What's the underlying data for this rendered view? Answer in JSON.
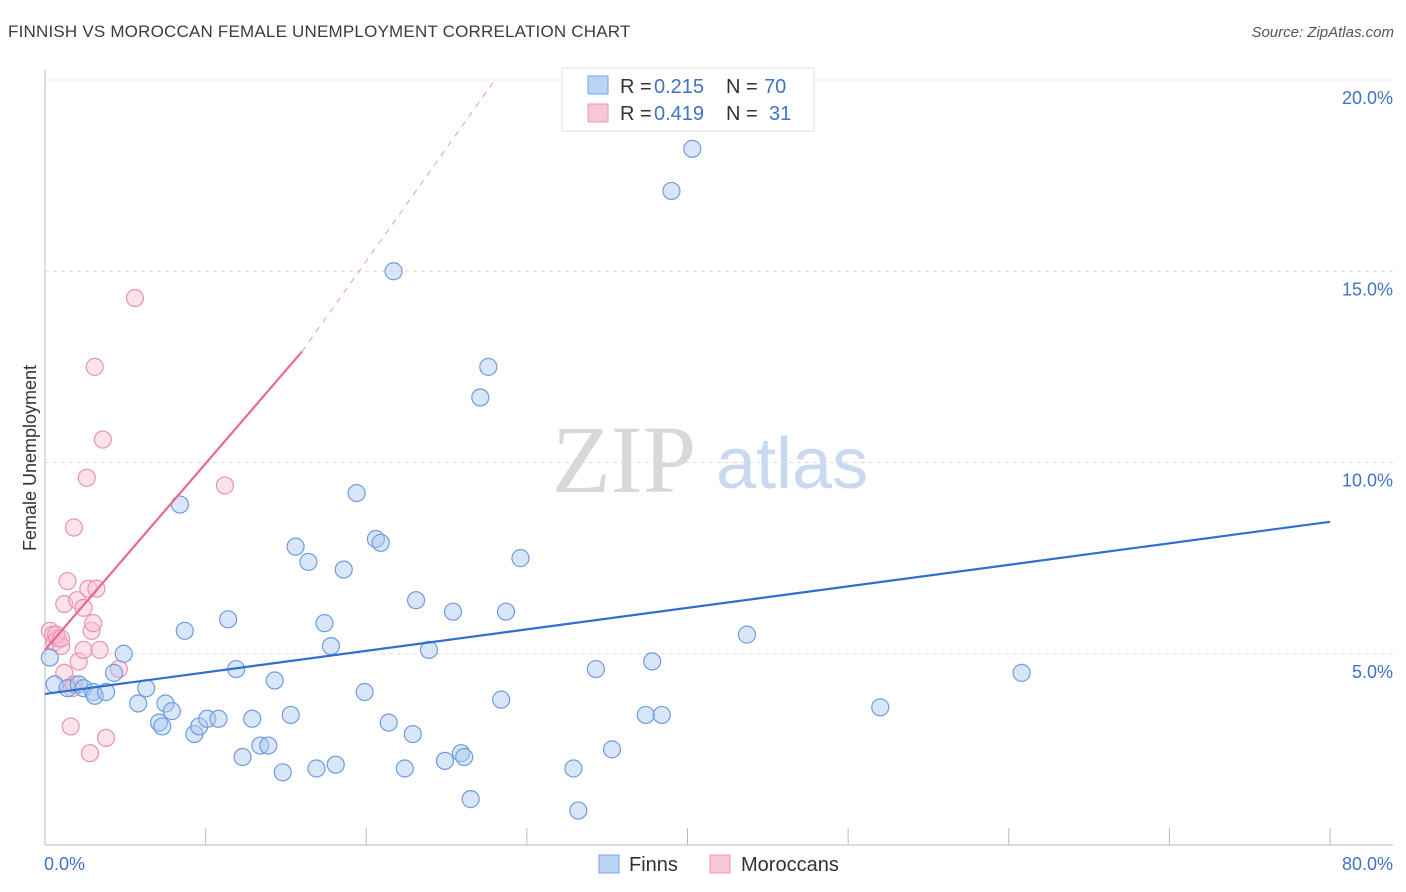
{
  "header": {
    "title": "FINNISH VS MOROCCAN FEMALE UNEMPLOYMENT CORRELATION CHART",
    "source": "Source: ZipAtlas.com"
  },
  "watermark": {
    "zip": "ZIP",
    "atlas": "atlas"
  },
  "legend": {
    "rows": [
      {
        "r_label": "R =",
        "r_value": "0.215",
        "n_label": "N =",
        "n_value": "70"
      },
      {
        "r_label": "R =",
        "r_value": "0.419",
        "n_label": "N =",
        "n_value": "31"
      }
    ]
  },
  "chart_data": {
    "type": "scatter",
    "title": "FINNISH VS MOROCCAN FEMALE UNEMPLOYMENT CORRELATION CHART",
    "xlabel": "",
    "ylabel": "Female Unemployment",
    "xlim": [
      0,
      80
    ],
    "ylim": [
      0,
      20
    ],
    "x_tick_labels": [
      "0.0%",
      "80.0%"
    ],
    "y_ticks": [
      5,
      10,
      15,
      20
    ],
    "y_tick_labels": [
      "5.0%",
      "10.0%",
      "15.0%",
      "20.0%"
    ],
    "grid": true,
    "legend_position": "top-center",
    "colors": {
      "finns": "#5b8fd6",
      "moroccans": "#ea89a9",
      "finns_line": "#2f6fce",
      "moroccans_line": "#e56a92"
    },
    "series": [
      {
        "name": "Finns",
        "points": [
          [
            0.6,
            4.2
          ],
          [
            1.4,
            4.1
          ],
          [
            2.1,
            4.2
          ],
          [
            2.4,
            4.1
          ],
          [
            3.0,
            4.0
          ],
          [
            3.1,
            3.9
          ],
          [
            3.8,
            4.0
          ],
          [
            4.3,
            4.5
          ],
          [
            4.9,
            5.0
          ],
          [
            5.8,
            3.7
          ],
          [
            6.3,
            4.1
          ],
          [
            7.1,
            3.2
          ],
          [
            7.3,
            3.1
          ],
          [
            7.5,
            3.7
          ],
          [
            7.9,
            3.5
          ],
          [
            8.4,
            8.9
          ],
          [
            8.7,
            5.6
          ],
          [
            9.3,
            2.9
          ],
          [
            9.6,
            3.1
          ],
          [
            10.1,
            3.3
          ],
          [
            10.8,
            3.3
          ],
          [
            11.4,
            5.9
          ],
          [
            11.9,
            4.6
          ],
          [
            12.3,
            2.3
          ],
          [
            12.9,
            3.3
          ],
          [
            13.4,
            2.6
          ],
          [
            13.9,
            2.6
          ],
          [
            14.3,
            4.3
          ],
          [
            14.8,
            1.9
          ],
          [
            15.3,
            3.4
          ],
          [
            15.6,
            7.8
          ],
          [
            16.4,
            7.4
          ],
          [
            16.9,
            2.0
          ],
          [
            17.4,
            5.8
          ],
          [
            17.8,
            5.2
          ],
          [
            18.1,
            2.1
          ],
          [
            18.6,
            7.2
          ],
          [
            19.4,
            9.2
          ],
          [
            19.9,
            4.0
          ],
          [
            20.6,
            8.0
          ],
          [
            20.9,
            7.9
          ],
          [
            21.4,
            3.2
          ],
          [
            21.7,
            15.0
          ],
          [
            22.4,
            2.0
          ],
          [
            22.9,
            2.9
          ],
          [
            23.1,
            6.4
          ],
          [
            23.9,
            5.1
          ],
          [
            24.9,
            2.2
          ],
          [
            25.4,
            6.1
          ],
          [
            25.9,
            2.4
          ],
          [
            26.1,
            2.3
          ],
          [
            26.5,
            1.2
          ],
          [
            27.1,
            11.7
          ],
          [
            27.6,
            12.5
          ],
          [
            28.4,
            3.8
          ],
          [
            28.7,
            6.1
          ],
          [
            29.6,
            7.5
          ],
          [
            32.9,
            2.0
          ],
          [
            33.2,
            0.9
          ],
          [
            34.3,
            4.6
          ],
          [
            35.3,
            2.5
          ],
          [
            37.4,
            3.4
          ],
          [
            37.8,
            4.8
          ],
          [
            38.4,
            3.4
          ],
          [
            39.0,
            17.1
          ],
          [
            40.3,
            18.2
          ],
          [
            43.7,
            5.5
          ],
          [
            52.0,
            3.6
          ],
          [
            60.8,
            4.5
          ],
          [
            0.3,
            4.9
          ]
        ]
      },
      {
        "name": "Moroccans",
        "points": [
          [
            0.3,
            5.6
          ],
          [
            0.5,
            5.5
          ],
          [
            0.6,
            5.3
          ],
          [
            0.8,
            5.4
          ],
          [
            1.0,
            5.2
          ],
          [
            1.2,
            4.5
          ],
          [
            1.2,
            6.3
          ],
          [
            1.4,
            6.9
          ],
          [
            1.6,
            3.1
          ],
          [
            1.7,
            4.1
          ],
          [
            1.8,
            8.3
          ],
          [
            1.8,
            4.2
          ],
          [
            2.0,
            6.4
          ],
          [
            2.1,
            4.8
          ],
          [
            2.4,
            5.1
          ],
          [
            2.4,
            6.2
          ],
          [
            2.6,
            9.6
          ],
          [
            2.7,
            6.7
          ],
          [
            2.8,
            2.4
          ],
          [
            2.9,
            5.6
          ],
          [
            3.0,
            5.8
          ],
          [
            3.1,
            12.5
          ],
          [
            3.2,
            6.7
          ],
          [
            3.4,
            5.1
          ],
          [
            3.6,
            10.6
          ],
          [
            3.8,
            2.8
          ],
          [
            4.6,
            4.6
          ],
          [
            5.6,
            14.3
          ],
          [
            11.2,
            9.4
          ],
          [
            0.7,
            5.5
          ],
          [
            1.0,
            5.4
          ]
        ]
      }
    ],
    "trendlines": [
      {
        "series": "Finns",
        "from": [
          0,
          3.95
        ],
        "to": [
          80,
          8.45
        ]
      },
      {
        "series": "Moroccans",
        "from": [
          0,
          5.1
        ],
        "to": [
          16,
          12.9
        ],
        "dashed_extension_to": [
          28,
          20.0
        ]
      }
    ]
  },
  "bottom_legend": {
    "finns": "Finns",
    "moroccans": "Moroccans"
  }
}
